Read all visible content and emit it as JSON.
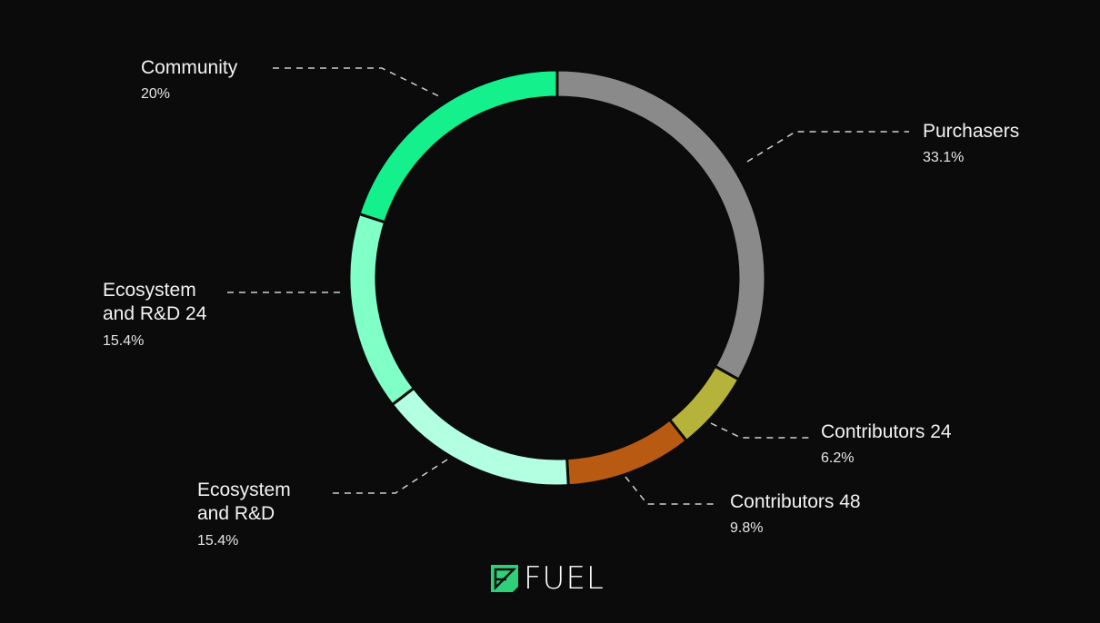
{
  "chart_data": {
    "type": "pie",
    "variant": "donut",
    "start_angle": "top, clockwise",
    "slices": [
      {
        "label": "Purchasers",
        "value": 33.1,
        "value_label": "33.1%",
        "color": "#8a8a8a"
      },
      {
        "label": "Contributors 24",
        "value": 6.2,
        "value_label": "6.2%",
        "color": "#b5b33a"
      },
      {
        "label": "Contributors 48",
        "value": 9.8,
        "value_label": "9.8%",
        "color": "#b85a12"
      },
      {
        "label": "Ecosystem and R&D",
        "value": 15.4,
        "value_label": "15.4%",
        "color": "#b2ffe2"
      },
      {
        "label": "Ecosystem and R&D 24",
        "value": 15.4,
        "value_label": "15.4%",
        "color": "#80ffc6"
      },
      {
        "label": "Community",
        "value": 20,
        "value_label": "20%",
        "color": "#14f08c"
      }
    ]
  },
  "brand": {
    "logo_text": "FUEL",
    "logo_color": "#2fd07a"
  },
  "background": "#0b0b0b"
}
